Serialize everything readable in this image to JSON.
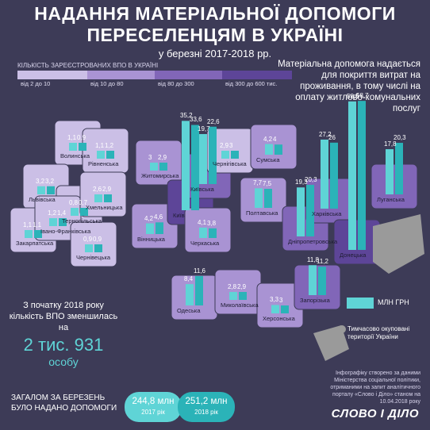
{
  "title_line1": "НАДАННЯ МАТЕРІАЛЬНОЇ ДОПОМОГИ",
  "title_line2": "ПЕРЕСЕЛЕНЦЯМ В УКРАЇНІ",
  "subtitle": "у березні 2017-2018 рр.",
  "legend": {
    "label": "КІЛЬКІСТЬ ЗАРЕЄСТРОВАНИХ ВПО В УКРАЇНІ",
    "bins": [
      {
        "text": "від 2 до 10",
        "color": "#cbbfe6"
      },
      {
        "text": "від 10 до 80",
        "color": "#a993d3"
      },
      {
        "text": "від 80 до 300",
        "color": "#8166b8"
      },
      {
        "text": "від 300 до 600 тис.",
        "color": "#5d4598"
      }
    ]
  },
  "description": "Матеріальна допомога надається для покриття витрат на проживання, в тому числі на оплату житлово-комунальних послуг",
  "bar_legend": "МЛН ГРН",
  "occupied_legend": "Тимчасово окуповані території України",
  "info": {
    "text": "З початку 2018 року кількість ВПО зменшилась на",
    "number": "2 тис. 931",
    "unit": "особу"
  },
  "total": {
    "text": "ЗАГАЛОМ ЗА БЕРЕЗЕНЬ БУЛО НАДАНО ДОПОМОГИ",
    "y2017_value": "244,8 млн",
    "y2017_label": "2017 рік",
    "y2018_value": "251,2 млн",
    "y2018_label": "2018 рік"
  },
  "source": "Інфографіку створено за даними Міністерства соціальної політики, отриманими на запит аналітичного порталу «Слово і Діло» станом на 10.04.2018 року",
  "brand": "СЛОВО І ДІЛО",
  "colors": {
    "background": "#3d3b57",
    "bar_2017": "#5fd4d6",
    "bar_2018": "#2bb3b8",
    "occupied": "#9a9a9a"
  },
  "chart_data": {
    "type": "bar",
    "unit": "МЛН ГРН",
    "series": [
      {
        "name": "2017 рік",
        "values": [
          1.1,
          1.1,
          3.2,
          1.1,
          0.8,
          1.2,
          0.9,
          2.6,
          3,
          4.2,
          35.2,
          19.7,
          2.9,
          4.2,
          4.1,
          8.4,
          2.8,
          3.3,
          7.7,
          19.3,
          11.8,
          27.2,
          58.5,
          17.8
        ]
      },
      {
        "name": "2018 рік",
        "values": [
          0.9,
          1.2,
          3.2,
          1.1,
          0.7,
          1.4,
          0.9,
          2.9,
          2.9,
          4.6,
          33.6,
          22.6,
          3,
          4,
          3.8,
          11.6,
          2.9,
          3,
          7.5,
          20.3,
          11.2,
          26,
          58.7,
          20.3
        ]
      }
    ],
    "categories": [
      "Волинська",
      "Рівненська",
      "Львівська",
      "Закарпатська",
      "Тернопільська",
      "Івано-Франківська",
      "Чернівецька",
      "Хмельницька",
      "Житомирська",
      "Вінницька",
      "Київ",
      "Київська",
      "Чернігівська",
      "Сумська",
      "Черкаська",
      "Одеська",
      "Миколаївська",
      "Херсонська",
      "Полтавська",
      "Дніпропетровська",
      "Запорізька",
      "Харківська",
      "Донецька",
      "Луганська"
    ],
    "labels_2017": [
      "1,1",
      "1,1",
      "3,2",
      "1,1",
      "0,8",
      "1,2",
      "0,9",
      "2,6",
      "3",
      "4,2",
      "35,2",
      "19,7",
      "2,9",
      "4,2",
      "4,1",
      "8,4",
      "2,8",
      "3,3",
      "7,7",
      "19,3",
      "11,8",
      "27,2",
      "58,5",
      "17,8"
    ],
    "labels_2018": [
      "0,9",
      "1,2",
      "3,2",
      "1,1",
      "0,7",
      "1,4",
      "0,9",
      "2,9",
      "2,9",
      "4,6",
      "33,6",
      "22,6",
      "3",
      "4",
      "3,8",
      "11,6",
      "2,9",
      "3",
      "7,5",
      "20,3",
      "11,2",
      "26",
      "58,7",
      "20,3"
    ],
    "idp_bins": [
      0,
      0,
      0,
      0,
      0,
      0,
      0,
      0,
      1,
      1,
      3,
      2,
      0,
      1,
      1,
      1,
      1,
      1,
      1,
      2,
      2,
      2,
      3,
      2
    ]
  }
}
